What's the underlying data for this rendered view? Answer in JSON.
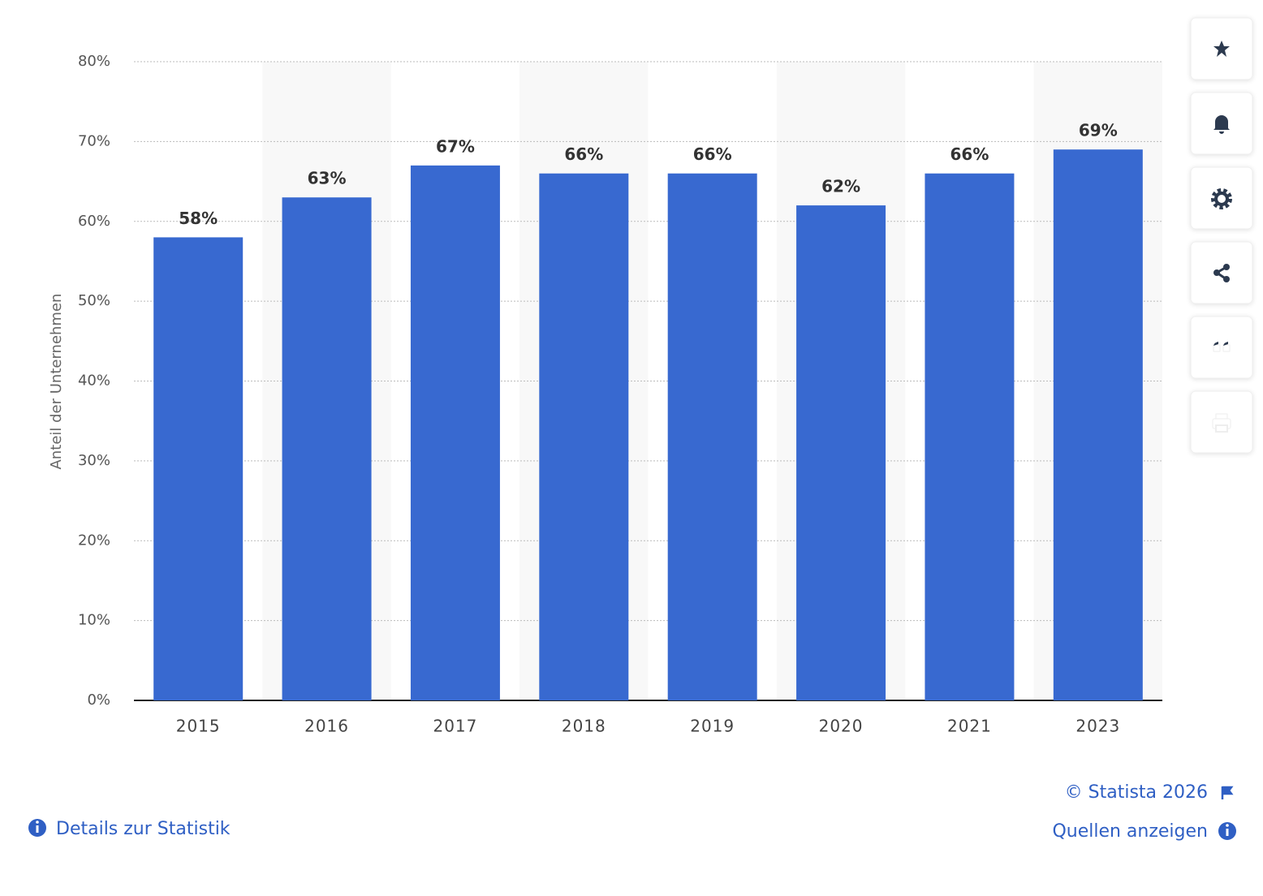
{
  "chart_data": {
    "type": "bar",
    "y_label": "Anteil der Unternehmen",
    "categories": [
      "2015",
      "2016",
      "2017",
      "2018",
      "2019",
      "2020",
      "2021",
      "2023"
    ],
    "values": [
      58,
      63,
      67,
      66,
      66,
      62,
      66,
      69
    ],
    "value_labels": [
      "58%",
      "63%",
      "67%",
      "66%",
      "66%",
      "62%",
      "66%",
      "69%"
    ],
    "color": "#3869d0",
    "ylim": [
      0,
      80
    ],
    "yticks": [
      {
        "value": 0,
        "label": "0%"
      },
      {
        "value": 10,
        "label": "10%"
      },
      {
        "value": 20,
        "label": "20%"
      },
      {
        "value": 30,
        "label": "30%"
      },
      {
        "value": 40,
        "label": "40%"
      },
      {
        "value": 50,
        "label": "50%"
      },
      {
        "value": 60,
        "label": "60%"
      },
      {
        "value": 70,
        "label": "70%"
      },
      {
        "value": 80,
        "label": "80%"
      }
    ],
    "grid": true
  },
  "footer": {
    "copyright": "© Statista 2026",
    "sources": "Quellen anzeigen",
    "details": "Details zur Statistik"
  }
}
